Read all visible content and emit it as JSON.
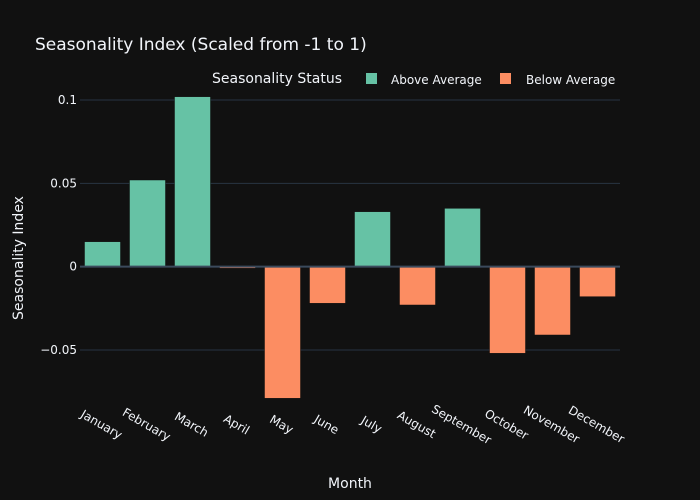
{
  "chart_data": {
    "type": "bar",
    "title": "Seasonality Index (Scaled from -1 to 1)",
    "xlabel": "Month",
    "ylabel": "Seasonality Index",
    "legend_title": "Seasonality Status",
    "legend_position": "top-right",
    "grid": true,
    "ylim": [
      -0.08,
      0.1
    ],
    "yticks": [
      -0.05,
      0,
      0.05,
      0.1
    ],
    "ytick_labels": [
      "−0.05",
      "0",
      "0.05",
      "0.1"
    ],
    "categories": [
      "January",
      "February",
      "March",
      "April",
      "May",
      "June",
      "July",
      "August",
      "September",
      "October",
      "November",
      "December"
    ],
    "values": [
      0.015,
      0.052,
      0.102,
      -0.001,
      -0.079,
      -0.022,
      0.033,
      -0.023,
      0.035,
      -0.052,
      -0.041,
      -0.018
    ],
    "series": [
      {
        "name": "Above Average",
        "color": "#66c2a5"
      },
      {
        "name": "Below Average",
        "color": "#fc8d62"
      }
    ]
  }
}
